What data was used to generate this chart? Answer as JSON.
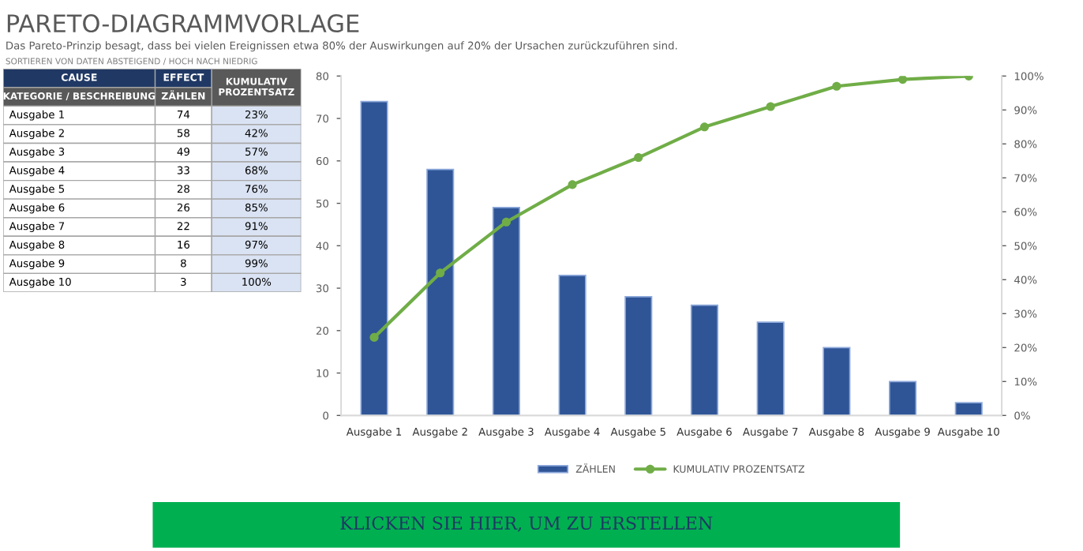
{
  "chart_data": [
    {
      "type": "other",
      "title": "PARETO-DIAGRAMMVORLAGE",
      "subtitle": "Das Pareto-Prinzip besagt, dass bei vielen Ereignissen etwa 80% der Auswirkungen auf 20% der Ursachen zurückzuführen sind.",
      "annotations": [
        "SORTIEREN VON DATEN ABSTEIGEND / HOCH NACH NIEDRIG",
        "CAUSE",
        "EFFECT",
        "KATEGORIE / BESCHREIBUNG",
        "ZÄHLEN",
        "KUMULATIV PROZENTSATZ",
        "23%",
        "42%",
        "57%",
        "68%",
        "76%",
        "85%",
        "91%",
        "97%",
        "99%",
        "100%"
      ],
      "categories": [
        "Ausgabe 1",
        "Ausgabe 2",
        "Ausgabe 3",
        "Ausgabe 4",
        "Ausgabe 5",
        "Ausgabe 6",
        "Ausgabe 7",
        "Ausgabe 8",
        "Ausgabe 9",
        "Ausgabe 10"
      ],
      "series": [
        {
          "color": "#ffffff",
          "values": [
            74,
            58,
            49,
            33,
            28,
            26,
            22,
            16,
            8,
            3
          ]
        }
      ],
      "data_labels": true
    },
    {
      "type": "bar",
      "annotations": [
        "KLICKEN SIE HIER, UM ZU ERSTELLEN"
      ],
      "categories": [
        "Ausgabe 1",
        "Ausgabe 2",
        "Ausgabe 3",
        "Ausgabe 4",
        "Ausgabe 5",
        "Ausgabe 6",
        "Ausgabe 7",
        "Ausgabe 8",
        "Ausgabe 9",
        "Ausgabe 10"
      ],
      "series": [
        {
          "name": "ZÄHLEN",
          "color": "#2f5597",
          "values": [
            74,
            58,
            49,
            33,
            28,
            26,
            22,
            16,
            8,
            3
          ]
        },
        {
          "name": "KUMULATIV PROZENTSATZ",
          "type": "line",
          "axis": "y2",
          "color": "#70ad47",
          "marker": "circle",
          "values": [
            23,
            42,
            57,
            68,
            76,
            85,
            91,
            97,
            99,
            100
          ]
        }
      ],
      "ylim": [
        0,
        80
      ],
      "yticks": [
        0,
        10,
        20,
        30,
        40,
        50,
        60,
        70,
        80
      ],
      "y2lim": [
        0,
        100
      ],
      "y2ticks": [
        {
          "value": 0,
          "label": "0%"
        },
        {
          "value": 10,
          "label": "10%"
        },
        {
          "value": 20,
          "label": "20%"
        },
        {
          "value": 30,
          "label": "30%"
        },
        {
          "value": 40,
          "label": "40%"
        },
        {
          "value": 50,
          "label": "50%"
        },
        {
          "value": 60,
          "label": "60%"
        },
        {
          "value": 70,
          "label": "70%"
        },
        {
          "value": 80,
          "label": "80%"
        },
        {
          "value": 90,
          "label": "90%"
        },
        {
          "value": 100,
          "label": "100%"
        }
      ],
      "grid": false,
      "legend": "bottom"
    }
  ]
}
